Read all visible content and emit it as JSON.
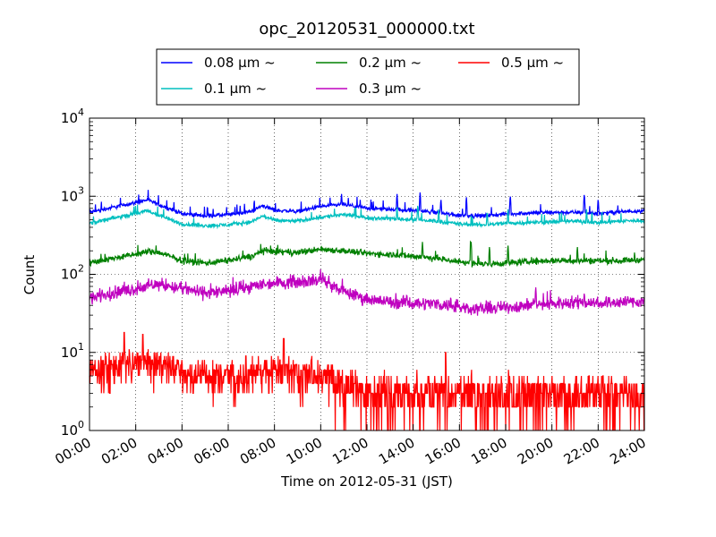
{
  "chart_data": {
    "type": "line",
    "title": "opc_20120531_000000.txt",
    "xlabel": "Time on 2012-05-31 (JST)",
    "ylabel": "Count",
    "x_tick_labels": [
      "00:00",
      "02:00",
      "04:00",
      "06:00",
      "08:00",
      "10:00",
      "12:00",
      "14:00",
      "16:00",
      "18:00",
      "20:00",
      "22:00",
      "24:00"
    ],
    "x_ticks_hours": [
      0,
      2,
      4,
      6,
      8,
      10,
      12,
      14,
      16,
      18,
      20,
      22,
      24
    ],
    "xlim_hours": [
      0,
      24
    ],
    "y_scale": "log",
    "ylim": [
      1,
      10000
    ],
    "y_ticks": [
      {
        "base": "10",
        "exp": "0"
      },
      {
        "base": "10",
        "exp": "1"
      },
      {
        "base": "10",
        "exp": "2"
      },
      {
        "base": "10",
        "exp": "3"
      },
      {
        "base": "10",
        "exp": "4"
      }
    ],
    "grid": true,
    "legend_position": "top-center, above plot",
    "series": [
      {
        "name": "0.08 μm ~",
        "color": "#0000ff",
        "hours": [
          0,
          1,
          2,
          2.5,
          3,
          4,
          5,
          6,
          7,
          7.5,
          8,
          9,
          10,
          11,
          12,
          13,
          14,
          15,
          16,
          17,
          18,
          19,
          20,
          21,
          22,
          23,
          24
        ],
        "values": [
          620,
          720,
          830,
          900,
          780,
          600,
          560,
          580,
          640,
          760,
          660,
          640,
          740,
          780,
          700,
          680,
          660,
          620,
          570,
          560,
          590,
          610,
          620,
          620,
          600,
          630,
          660
        ],
        "noise": 0.05,
        "spikes": [
          [
            10.9,
            1100
          ],
          [
            13.3,
            1100
          ],
          [
            14.3,
            1150
          ],
          [
            15.2,
            950
          ],
          [
            16.3,
            1000
          ],
          [
            18.2,
            1050
          ],
          [
            21.4,
            1100
          ],
          [
            22.0,
            950
          ]
        ]
      },
      {
        "name": "0.1 μm ~",
        "color": "#00bfbf",
        "hours": [
          0,
          1,
          2,
          2.5,
          3,
          4,
          5,
          6,
          7,
          7.5,
          8,
          9,
          10,
          11,
          12,
          13,
          14,
          15,
          16,
          17,
          18,
          19,
          20,
          21,
          22,
          23,
          24
        ],
        "values": [
          450,
          520,
          600,
          650,
          570,
          440,
          420,
          430,
          470,
          560,
          490,
          480,
          540,
          580,
          530,
          520,
          500,
          480,
          440,
          430,
          450,
          460,
          470,
          480,
          460,
          480,
          490
        ],
        "noise": 0.05,
        "spikes": [
          [
            13.3,
            750
          ],
          [
            14.2,
            800
          ],
          [
            15.1,
            700
          ],
          [
            17.2,
            650
          ],
          [
            18.1,
            700
          ],
          [
            21.5,
            700
          ]
        ]
      },
      {
        "name": "0.2 μm ~",
        "color": "#008000",
        "hours": [
          0,
          1,
          2,
          2.5,
          3,
          4,
          5,
          6,
          7,
          7.5,
          8,
          9,
          10,
          11,
          12,
          13,
          14,
          15,
          16,
          17,
          18,
          19,
          20,
          21,
          22,
          23,
          24
        ],
        "values": [
          140,
          160,
          180,
          195,
          190,
          150,
          140,
          150,
          170,
          200,
          195,
          190,
          210,
          200,
          185,
          180,
          170,
          160,
          145,
          135,
          140,
          145,
          150,
          150,
          150,
          150,
          155
        ],
        "noise": 0.08,
        "spikes": [
          [
            14.4,
            260
          ],
          [
            16.5,
            280
          ],
          [
            17.3,
            230
          ],
          [
            18.1,
            240
          ],
          [
            21.1,
            230
          ]
        ]
      },
      {
        "name": "0.3 μm ~",
        "color": "#bf00bf",
        "hours": [
          0,
          1,
          2,
          3,
          4,
          5,
          6,
          7,
          8,
          9,
          10,
          11,
          12,
          13,
          14,
          15,
          16,
          17,
          18,
          19,
          20,
          21,
          22,
          23,
          24
        ],
        "values": [
          50,
          58,
          65,
          75,
          65,
          58,
          60,
          70,
          78,
          80,
          85,
          60,
          48,
          44,
          43,
          42,
          38,
          36,
          38,
          40,
          42,
          44,
          43,
          44,
          45
        ],
        "noise": 0.16,
        "spikes": [
          [
            10.1,
            105
          ],
          [
            19.3,
            70
          ],
          [
            21.4,
            60
          ]
        ]
      },
      {
        "name": "0.5 μm ~",
        "color": "#ff0000",
        "hours": [
          0,
          1,
          2,
          3,
          4,
          5,
          6,
          7,
          8,
          9,
          10,
          11,
          12,
          13,
          14,
          15,
          16,
          17,
          18,
          19,
          20,
          21,
          22,
          23,
          24
        ],
        "values": [
          5.5,
          6.5,
          7,
          7.5,
          6,
          5,
          5,
          5.5,
          6,
          5.5,
          5.5,
          4,
          3,
          3,
          3,
          3,
          3,
          3,
          3,
          3,
          3,
          3,
          3,
          3,
          3
        ],
        "noise": 0.3,
        "spikes": [
          [
            1.5,
            18
          ],
          [
            2.3,
            17
          ],
          [
            8.4,
            15
          ],
          [
            15.4,
            10
          ]
        ]
      }
    ]
  }
}
